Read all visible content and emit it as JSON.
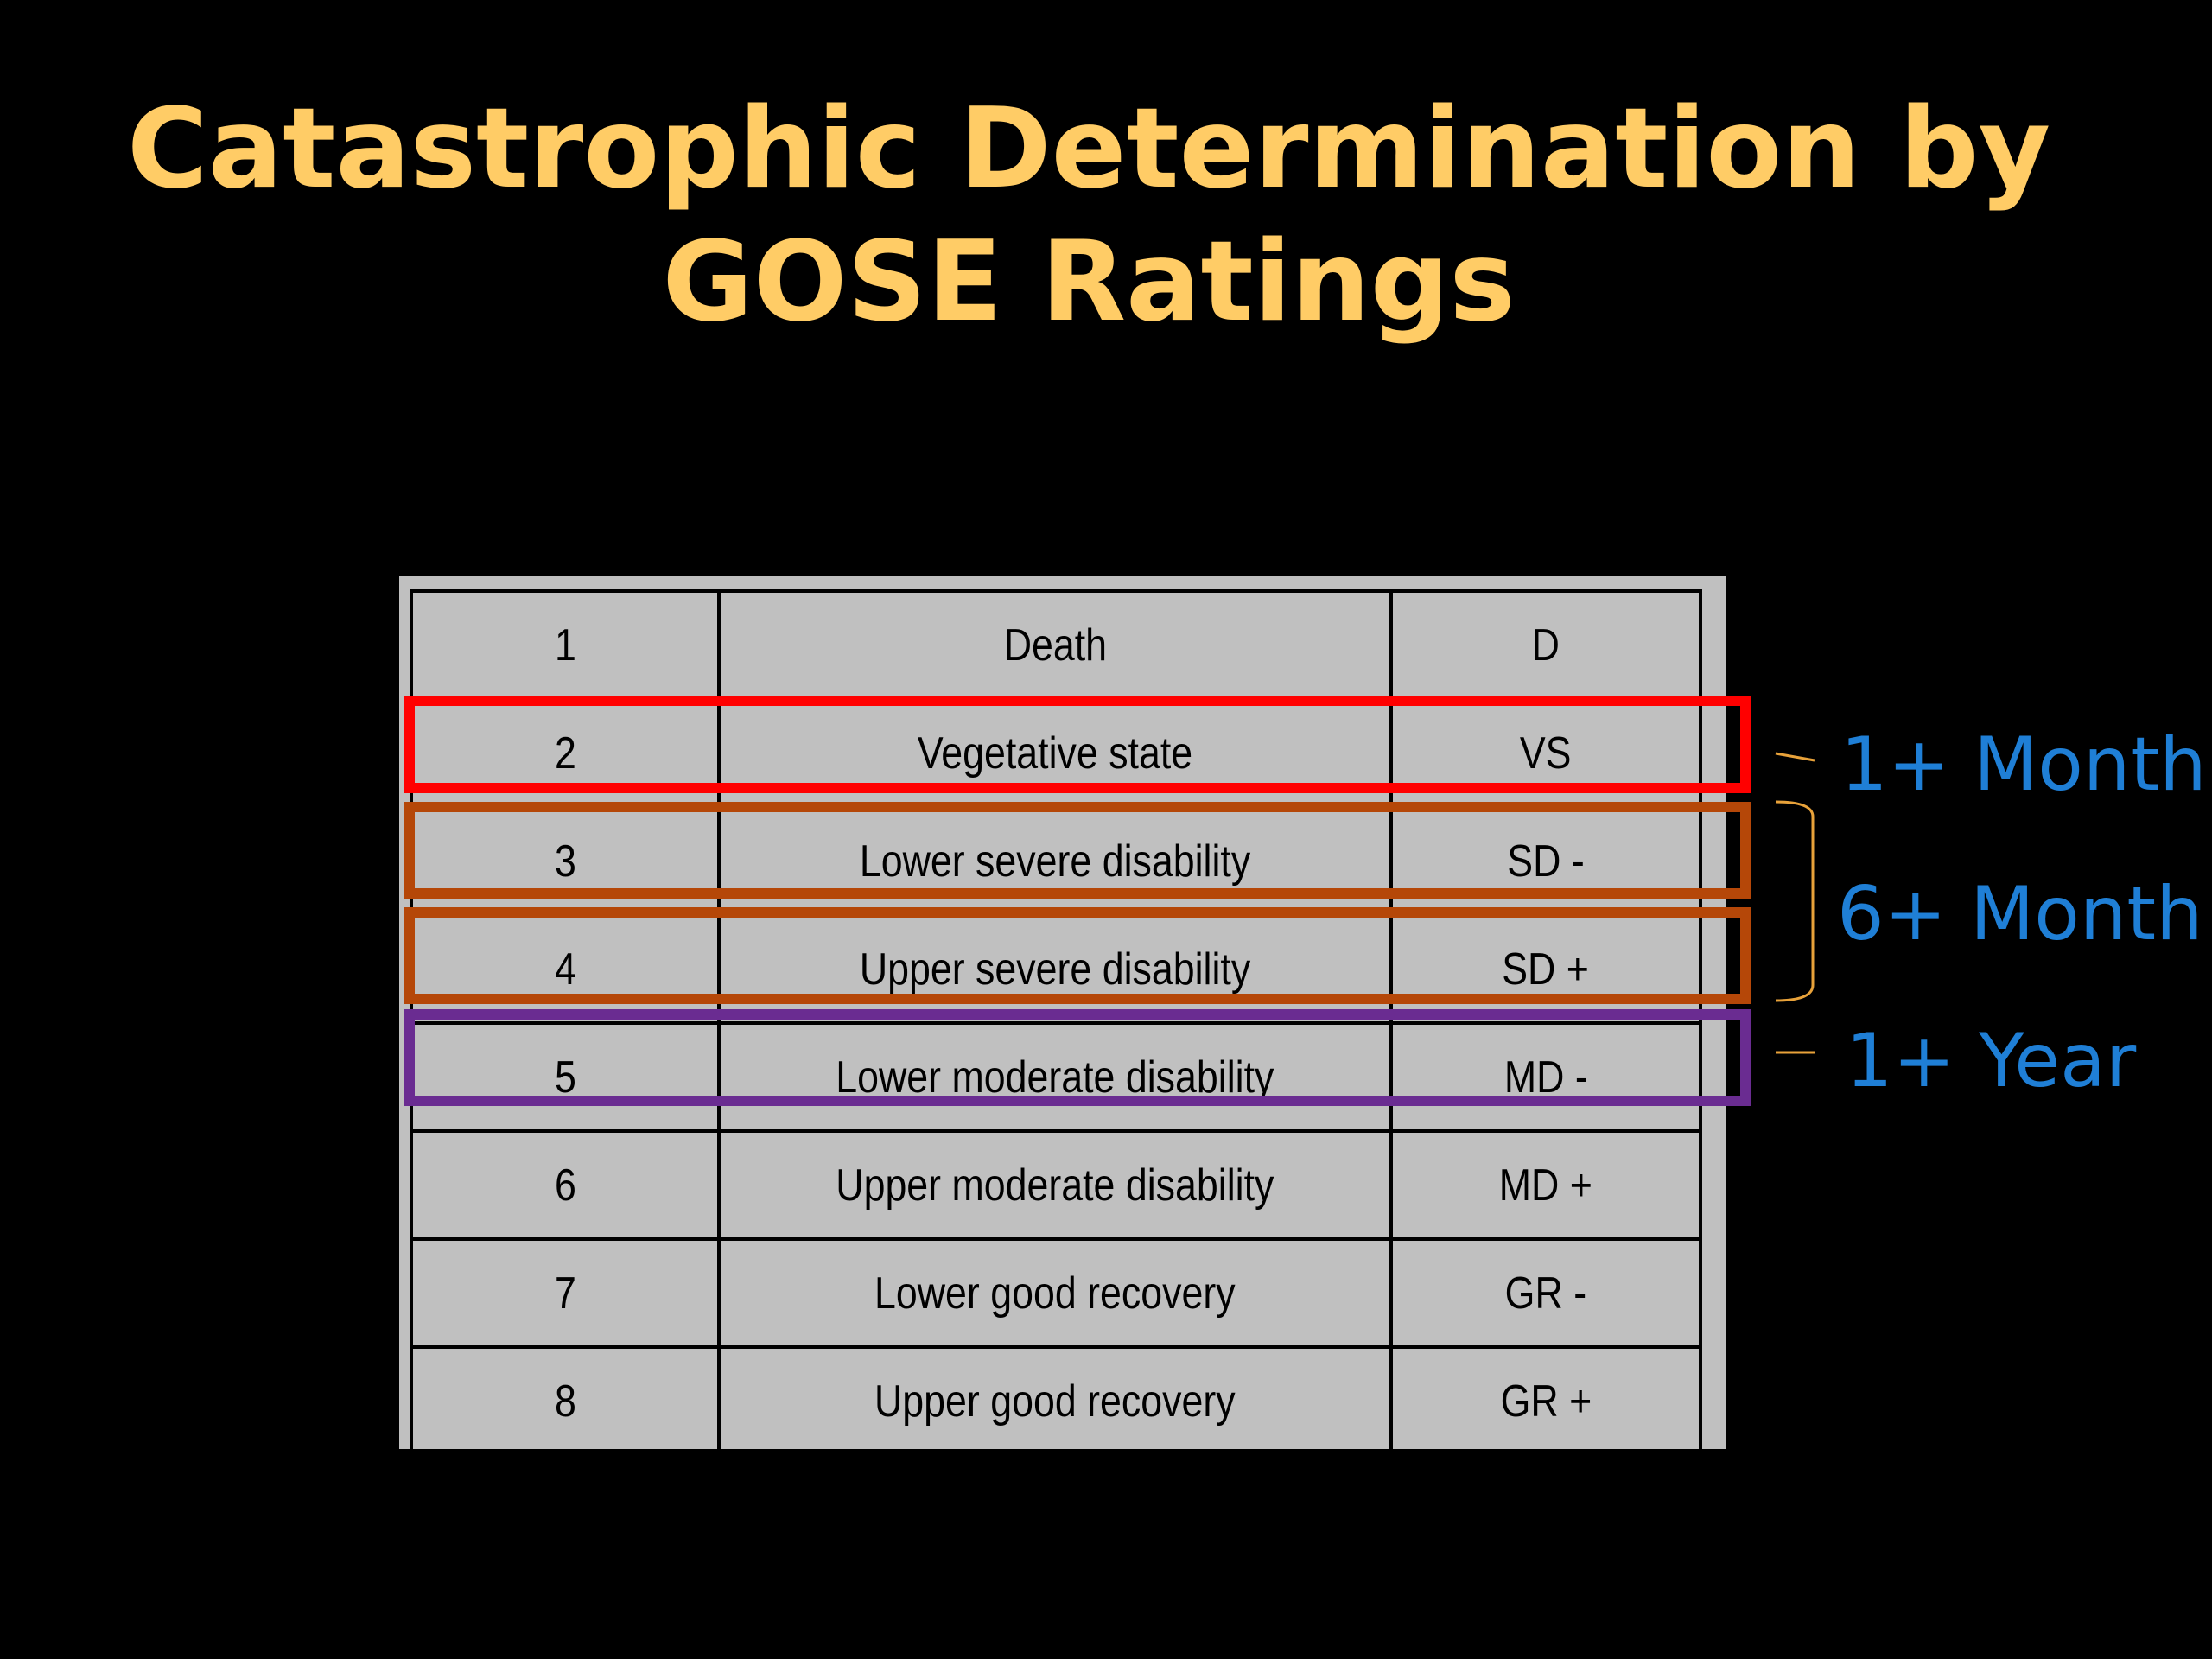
{
  "slide": {
    "title_line1": "Catastrophic Determination by",
    "title_line2": "GOSE Ratings"
  },
  "table": {
    "rows": [
      {
        "score": "1",
        "description": "Death",
        "code": "D"
      },
      {
        "score": "2",
        "description": "Vegetative state",
        "code": "VS"
      },
      {
        "score": "3",
        "description": "Lower severe disability",
        "code": "SD -"
      },
      {
        "score": "4",
        "description": "Upper severe disability",
        "code": "SD +"
      },
      {
        "score": "5",
        "description": "Lower moderate disability",
        "code": "MD -"
      },
      {
        "score": "6",
        "description": "Upper moderate disability",
        "code": "MD +"
      },
      {
        "score": "7",
        "description": "Lower good recovery",
        "code": "GR -"
      },
      {
        "score": "8",
        "description": "Upper good recovery",
        "code": "GR +"
      }
    ]
  },
  "annotations": {
    "one_month": "1+ Month",
    "six_month": "6+ Month",
    "one_year": "1+ Year"
  },
  "colors": {
    "title": "#ffcc66",
    "annotation_text": "#1f7fd6",
    "vegetative_box": "#ff0000",
    "severe_box": "#b54708",
    "moderate_box": "#6a2c91",
    "bracket": "#e8a23a",
    "table_background": "#c0c0c0"
  }
}
